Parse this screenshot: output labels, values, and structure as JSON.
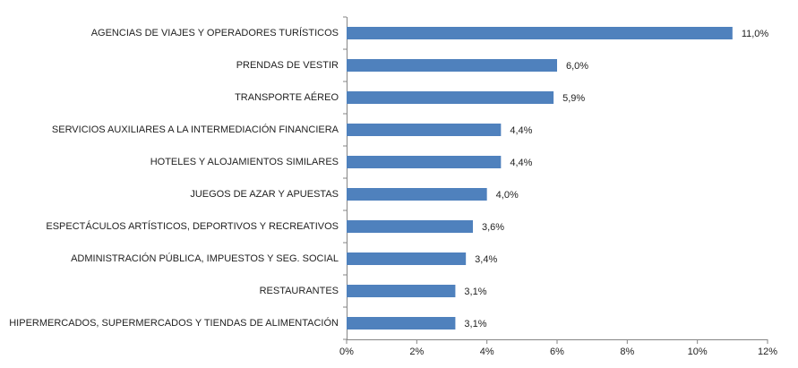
{
  "chart_data": {
    "type": "bar",
    "orientation": "horizontal",
    "categories": [
      "AGENCIAS DE VIAJES Y OPERADORES TURÍSTICOS",
      "PRENDAS DE VESTIR",
      "TRANSPORTE AÉREO",
      "SERVICIOS AUXILIARES A LA INTERMEDIACIÓN FINANCIERA",
      "HOTELES  Y ALOJAMIENTOS SIMILARES",
      "JUEGOS DE AZAR Y APUESTAS",
      "ESPECTÁCULOS ARTÍSTICOS, DEPORTIVOS Y RECREATIVOS",
      "ADMINISTRACIÓN PÚBLICA, IMPUESTOS Y SEG. SOCIAL",
      "RESTAURANTES",
      "HIPERMERCADOS, SUPERMERCADOS Y TIENDAS DE ALIMENTACIÓN"
    ],
    "values": [
      11.0,
      6.0,
      5.9,
      4.4,
      4.4,
      4.0,
      3.6,
      3.4,
      3.1,
      3.1
    ],
    "value_labels": [
      "11,0%",
      "6,0%",
      "5,9%",
      "4,4%",
      "4,4%",
      "4,0%",
      "3,6%",
      "3,4%",
      "3,1%",
      "3,1%"
    ],
    "color": "#4f81bd",
    "xlim": [
      0,
      12
    ],
    "xticks": [
      {
        "value": 0,
        "label": "0%"
      },
      {
        "value": 2,
        "label": "2%"
      },
      {
        "value": 4,
        "label": "4%"
      },
      {
        "value": 6,
        "label": "6%"
      },
      {
        "value": 8,
        "label": "8%"
      },
      {
        "value": 10,
        "label": "10%"
      },
      {
        "value": 12,
        "label": "12%"
      }
    ],
    "grid": false
  }
}
